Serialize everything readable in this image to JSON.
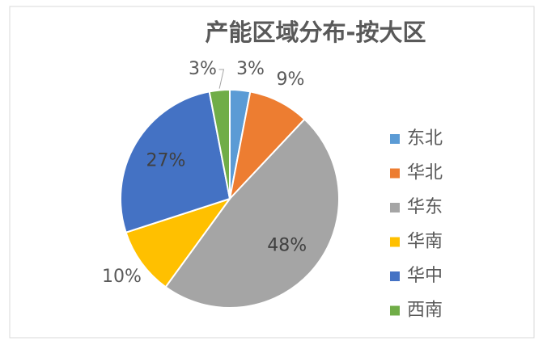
{
  "chart_data": {
    "type": "pie",
    "title": "产能区域分布-按大区",
    "categories": [
      "东北",
      "华北",
      "华东",
      "华南",
      "华中",
      "西南"
    ],
    "values": [
      3,
      9,
      48,
      10,
      27,
      3
    ],
    "value_labels": [
      "3%",
      "9%",
      "48%",
      "10%",
      "27%",
      "3%"
    ],
    "colors": [
      "#5b9bd5",
      "#ed7d31",
      "#a5a5a5",
      "#ffc000",
      "#4472c4",
      "#70ad47"
    ],
    "legend": "right"
  }
}
